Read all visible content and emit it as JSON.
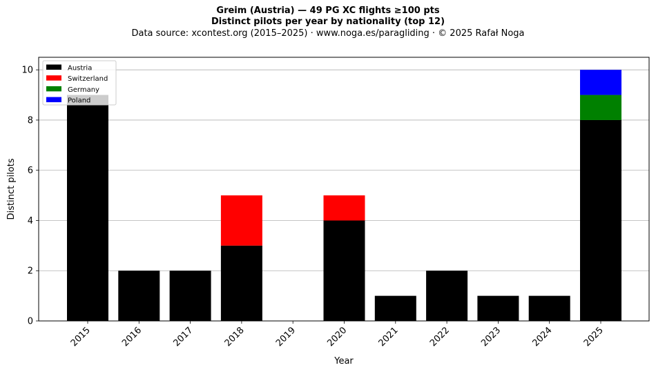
{
  "title": {
    "line1": "Greim (Austria)  —  49 PG XC flights ≥100 pts",
    "line2": "Distinct pilots per year by nationality (top 12)",
    "line3": "Data source: xcontest.org (2015–2025)  ·  www.noga.es/paragliding  ·  © 2025 Rafał Noga"
  },
  "chart_data": {
    "type": "bar",
    "stacked": true,
    "categories": [
      "2015",
      "2016",
      "2017",
      "2018",
      "2019",
      "2020",
      "2021",
      "2022",
      "2023",
      "2024",
      "2025"
    ],
    "series": [
      {
        "name": "Austria",
        "color": "#000000",
        "values": [
          9,
          2,
          2,
          3,
          0,
          4,
          1,
          2,
          1,
          1,
          8
        ]
      },
      {
        "name": "Switzerland",
        "color": "#ff0000",
        "values": [
          0,
          0,
          0,
          2,
          0,
          1,
          0,
          0,
          0,
          0,
          0
        ]
      },
      {
        "name": "Germany",
        "color": "#008000",
        "values": [
          0,
          0,
          0,
          0,
          0,
          0,
          0,
          0,
          0,
          0,
          1
        ]
      },
      {
        "name": "Poland",
        "color": "#0000ff",
        "values": [
          0,
          0,
          0,
          0,
          0,
          0,
          0,
          0,
          0,
          0,
          1
        ]
      }
    ],
    "xlabel": "Year",
    "ylabel": "Distinct pilots",
    "ylim": [
      0,
      10.5
    ],
    "yticks": [
      0,
      2,
      4,
      6,
      8,
      10
    ],
    "grid": "y",
    "legend": "top-left"
  }
}
